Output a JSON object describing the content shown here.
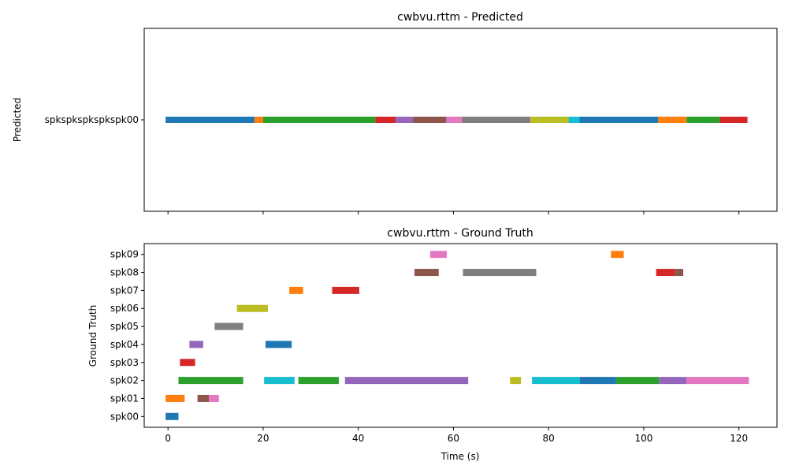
{
  "chart_data": [
    {
      "type": "timeline",
      "title": "cwbvu.rttm - Predicted",
      "ylabel": "Predicted",
      "xlabel": "",
      "xlim": [
        -5,
        128
      ],
      "x_ticks": [
        0,
        20,
        40,
        60,
        80,
        100,
        120
      ],
      "show_x_tick_labels": false,
      "speakers": [
        "spkspkspkspkspk00"
      ],
      "segments": [
        {
          "speaker": "spkspkspkspkspk00",
          "start": -0.5,
          "end": 18.2,
          "color": "#1f77b4"
        },
        {
          "speaker": "spkspkspkspkspk00",
          "start": 18.2,
          "end": 20.0,
          "color": "#ff7f0e"
        },
        {
          "speaker": "spkspkspkspkspk00",
          "start": 20.0,
          "end": 43.6,
          "color": "#2ca02c"
        },
        {
          "speaker": "spkspkspkspkspk00",
          "start": 43.6,
          "end": 47.9,
          "color": "#d62728"
        },
        {
          "speaker": "spkspkspkspkspk00",
          "start": 47.9,
          "end": 51.5,
          "color": "#9467bd"
        },
        {
          "speaker": "spkspkspkspkspk00",
          "start": 51.5,
          "end": 58.5,
          "color": "#8c564b"
        },
        {
          "speaker": "spkspkspkspkspk00",
          "start": 58.5,
          "end": 61.8,
          "color": "#e377c2"
        },
        {
          "speaker": "spkspkspkspkspk00",
          "start": 61.8,
          "end": 76.2,
          "color": "#7f7f7f"
        },
        {
          "speaker": "spkspkspkspkspk00",
          "start": 76.2,
          "end": 84.2,
          "color": "#bcbd22"
        },
        {
          "speaker": "spkspkspkspkspk00",
          "start": 84.2,
          "end": 86.5,
          "color": "#17becf"
        },
        {
          "speaker": "spkspkspkspkspk00",
          "start": 86.5,
          "end": 103.0,
          "color": "#1f77b4"
        },
        {
          "speaker": "spkspkspkspkspk00",
          "start": 103.0,
          "end": 109.0,
          "color": "#ff7f0e"
        },
        {
          "speaker": "spkspkspkspkspk00",
          "start": 109.0,
          "end": 116.0,
          "color": "#2ca02c"
        },
        {
          "speaker": "spkspkspkspkspk00",
          "start": 116.0,
          "end": 121.8,
          "color": "#d62728"
        }
      ]
    },
    {
      "type": "timeline",
      "title": "cwbvu.rttm - Ground Truth",
      "ylabel": "Ground Truth",
      "xlabel": "Time (s)",
      "xlim": [
        -5,
        128
      ],
      "x_ticks": [
        0,
        20,
        40,
        60,
        80,
        100,
        120
      ],
      "show_x_tick_labels": true,
      "speakers": [
        "spk00",
        "spk01",
        "spk02",
        "spk03",
        "spk04",
        "spk05",
        "spk06",
        "spk07",
        "spk08",
        "spk09"
      ],
      "segments": [
        {
          "speaker": "spk00",
          "start": -0.5,
          "end": 2.2,
          "color": "#1f77b4"
        },
        {
          "speaker": "spk01",
          "start": -0.5,
          "end": 3.5,
          "color": "#ff7f0e"
        },
        {
          "speaker": "spk01",
          "start": 6.2,
          "end": 8.6,
          "color": "#8c564b"
        },
        {
          "speaker": "spk01",
          "start": 8.6,
          "end": 10.7,
          "color": "#e377c2"
        },
        {
          "speaker": "spk02",
          "start": 2.2,
          "end": 15.8,
          "color": "#2ca02c"
        },
        {
          "speaker": "spk02",
          "start": 20.2,
          "end": 26.6,
          "color": "#17becf"
        },
        {
          "speaker": "spk02",
          "start": 27.4,
          "end": 35.9,
          "color": "#2ca02c"
        },
        {
          "speaker": "spk02",
          "start": 37.2,
          "end": 63.1,
          "color": "#9467bd"
        },
        {
          "speaker": "spk02",
          "start": 71.9,
          "end": 74.2,
          "color": "#bcbd22"
        },
        {
          "speaker": "spk02",
          "start": 76.5,
          "end": 86.6,
          "color": "#17becf"
        },
        {
          "speaker": "spk02",
          "start": 86.6,
          "end": 94.2,
          "color": "#1f77b4"
        },
        {
          "speaker": "spk02",
          "start": 94.2,
          "end": 103.2,
          "color": "#2ca02c"
        },
        {
          "speaker": "spk02",
          "start": 103.2,
          "end": 109.0,
          "color": "#9467bd"
        },
        {
          "speaker": "spk02",
          "start": 109.0,
          "end": 122.1,
          "color": "#e377c2"
        },
        {
          "speaker": "spk03",
          "start": 2.5,
          "end": 5.7,
          "color": "#d62728"
        },
        {
          "speaker": "spk04",
          "start": 4.5,
          "end": 7.4,
          "color": "#9467bd"
        },
        {
          "speaker": "spk04",
          "start": 20.5,
          "end": 26.0,
          "color": "#1f77b4"
        },
        {
          "speaker": "spk05",
          "start": 9.8,
          "end": 15.8,
          "color": "#7f7f7f"
        },
        {
          "speaker": "spk06",
          "start": 14.5,
          "end": 21.0,
          "color": "#bcbd22"
        },
        {
          "speaker": "spk07",
          "start": 25.5,
          "end": 28.4,
          "color": "#ff7f0e"
        },
        {
          "speaker": "spk07",
          "start": 34.5,
          "end": 40.2,
          "color": "#d62728"
        },
        {
          "speaker": "spk08",
          "start": 51.8,
          "end": 56.9,
          "color": "#8c564b"
        },
        {
          "speaker": "spk08",
          "start": 62.0,
          "end": 77.4,
          "color": "#7f7f7f"
        },
        {
          "speaker": "spk08",
          "start": 102.6,
          "end": 106.5,
          "color": "#d62728"
        },
        {
          "speaker": "spk08",
          "start": 106.5,
          "end": 108.3,
          "color": "#8c564b"
        },
        {
          "speaker": "spk09",
          "start": 55.1,
          "end": 58.6,
          "color": "#e377c2"
        },
        {
          "speaker": "spk09",
          "start": 93.1,
          "end": 95.8,
          "color": "#ff7f0e"
        }
      ]
    }
  ]
}
